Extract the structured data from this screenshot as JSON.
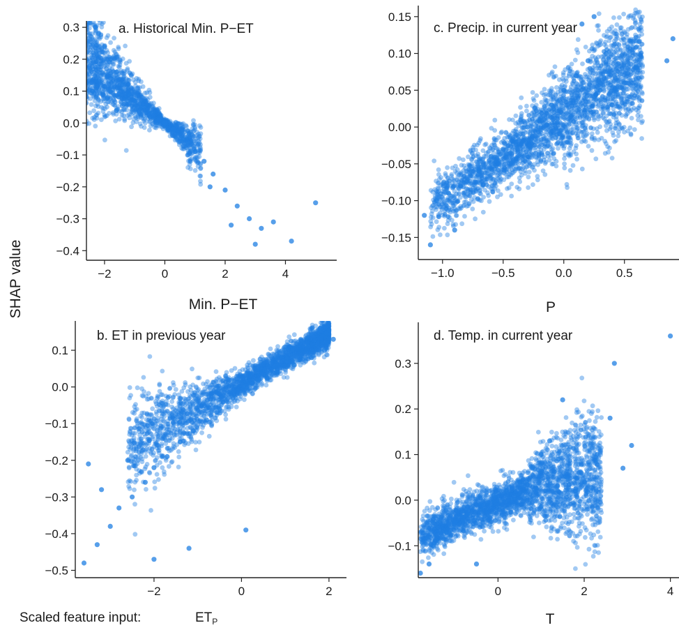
{
  "figure": {
    "shared_ylabel": "SHAP value",
    "footer_label": "Scaled feature input:",
    "footer_symbol": "ET",
    "footer_subscript": "P"
  },
  "colors": {
    "points": "#1f7fe3",
    "axis": "#222222"
  },
  "chart_data": [
    {
      "id": "a",
      "type": "scatter",
      "title": "a. Historical Min. P−ET",
      "xlabel": "Min. P−ET",
      "ylabel": "",
      "xlim": [
        -2.6,
        5.7
      ],
      "ylim": [
        -0.43,
        0.32
      ],
      "xticks": [
        -2,
        0,
        2,
        4
      ],
      "xtick_labels": [
        "−2",
        "0",
        "2",
        "4"
      ],
      "yticks": [
        0.3,
        0.2,
        0.1,
        0.0,
        -0.1,
        -0.2,
        -0.3,
        -0.4
      ],
      "ytick_labels": [
        "0.3",
        "0.2",
        "0.1",
        "0.0",
        "−0.1",
        "−0.2",
        "−0.3",
        "−0.4"
      ],
      "grid": false,
      "points": [
        [
          -2.3,
          0.3
        ],
        [
          -2.2,
          0.28
        ],
        [
          -2.0,
          0.24
        ],
        [
          -1.8,
          0.2
        ],
        [
          -1.6,
          0.16
        ],
        [
          -1.4,
          0.12
        ],
        [
          -1.2,
          0.09
        ],
        [
          -1.0,
          0.07
        ],
        [
          -0.8,
          0.05
        ],
        [
          -0.5,
          0.03
        ],
        [
          -0.2,
          0.01
        ],
        [
          0.0,
          0.0
        ],
        [
          0.3,
          -0.02
        ],
        [
          0.6,
          -0.05
        ],
        [
          1.0,
          -0.09
        ],
        [
          1.3,
          -0.12
        ],
        [
          1.6,
          -0.16
        ],
        [
          2.0,
          -0.21
        ],
        [
          2.4,
          -0.26
        ],
        [
          2.8,
          -0.3
        ],
        [
          3.2,
          -0.33
        ],
        [
          3.6,
          -0.31
        ],
        [
          4.2,
          -0.37
        ],
        [
          5.0,
          -0.25
        ],
        [
          -2.4,
          0.1
        ],
        [
          -1.9,
          0.08
        ],
        [
          -1.6,
          0.04
        ],
        [
          1.5,
          -0.2
        ],
        [
          2.2,
          -0.32
        ],
        [
          3.0,
          -0.38
        ]
      ]
    },
    {
      "id": "b",
      "type": "scatter",
      "title": "b. ET in previous year",
      "xlabel": "ET",
      "ylabel": "",
      "xlim": [
        -3.8,
        2.4
      ],
      "ylim": [
        -0.52,
        0.18
      ],
      "xticks": [
        -2,
        0,
        2
      ],
      "xtick_labels": [
        "−2",
        "0",
        "2"
      ],
      "yticks": [
        0.1,
        0.0,
        -0.1,
        -0.2,
        -0.3,
        -0.4,
        -0.5
      ],
      "ytick_labels": [
        "0.1",
        "0.0",
        "−0.1",
        "−0.2",
        "−0.3",
        "−0.4",
        "−0.5"
      ],
      "grid": false,
      "points": [
        [
          -3.6,
          -0.48
        ],
        [
          -3.3,
          -0.43
        ],
        [
          -3.0,
          -0.38
        ],
        [
          -2.8,
          -0.33
        ],
        [
          -2.5,
          -0.3
        ],
        [
          -2.2,
          -0.26
        ],
        [
          -2.0,
          -0.22
        ],
        [
          -1.7,
          -0.19
        ],
        [
          -1.4,
          -0.15
        ],
        [
          -1.1,
          -0.12
        ],
        [
          -0.8,
          -0.09
        ],
        [
          -0.5,
          -0.06
        ],
        [
          -0.2,
          -0.03
        ],
        [
          0.1,
          0.0
        ],
        [
          0.4,
          0.02
        ],
        [
          0.8,
          0.04
        ],
        [
          1.2,
          0.06
        ],
        [
          1.6,
          0.08
        ],
        [
          1.9,
          0.1
        ],
        [
          2.1,
          0.13
        ],
        [
          -3.2,
          -0.28
        ],
        [
          -2.6,
          -0.2
        ],
        [
          -1.2,
          -0.44
        ],
        [
          0.1,
          -0.39
        ],
        [
          -2.0,
          -0.47
        ],
        [
          -3.5,
          -0.21
        ],
        [
          1.8,
          0.16
        ]
      ]
    },
    {
      "id": "c",
      "type": "scatter",
      "title": "c. Precip. in current year",
      "xlabel": "P",
      "ylabel": "",
      "xlim": [
        -1.2,
        0.95
      ],
      "ylim": [
        -0.18,
        0.165
      ],
      "xticks": [
        -1.0,
        -0.5,
        0.0,
        0.5
      ],
      "xtick_labels": [
        "−1.0",
        "−0.5",
        "0.0",
        "0.5"
      ],
      "yticks": [
        0.15,
        0.1,
        0.05,
        0.0,
        -0.05,
        -0.1,
        -0.15
      ],
      "ytick_labels": [
        "0.15",
        "0.10",
        "0.05",
        "0.00",
        "−0.05",
        "−0.10",
        "−0.15"
      ],
      "grid": false,
      "points": [
        [
          -1.15,
          -0.12
        ],
        [
          -1.05,
          -0.1
        ],
        [
          -0.95,
          -0.09
        ],
        [
          -0.85,
          -0.08
        ],
        [
          -0.7,
          -0.06
        ],
        [
          -0.6,
          -0.04
        ],
        [
          -0.5,
          -0.03
        ],
        [
          -0.4,
          -0.02
        ],
        [
          -0.3,
          0.0
        ],
        [
          -0.2,
          0.01
        ],
        [
          -0.1,
          0.03
        ],
        [
          0.0,
          0.05
        ],
        [
          0.1,
          0.07
        ],
        [
          0.2,
          0.09
        ],
        [
          0.3,
          0.05
        ],
        [
          0.4,
          0.03
        ],
        [
          0.5,
          0.06
        ],
        [
          0.35,
          0.1
        ],
        [
          0.15,
          0.14
        ],
        [
          0.85,
          0.09
        ],
        [
          0.9,
          0.12
        ],
        [
          -0.9,
          -0.14
        ],
        [
          -1.1,
          -0.16
        ],
        [
          0.25,
          0.15
        ],
        [
          0.6,
          0.08
        ]
      ]
    },
    {
      "id": "d",
      "type": "scatter",
      "title": "d. Temp. in current year",
      "xlabel": "T",
      "ylabel": "",
      "xlim": [
        -1.85,
        4.2
      ],
      "ylim": [
        -0.17,
        0.39
      ],
      "xticks": [
        0,
        2,
        4
      ],
      "xtick_labels": [
        "0",
        "2",
        "4"
      ],
      "yticks": [
        0.3,
        0.2,
        0.1,
        0.0,
        -0.1
      ],
      "ytick_labels": [
        "0.3",
        "0.2",
        "0.1",
        "0.0",
        "−0.1"
      ],
      "grid": false,
      "points": [
        [
          -1.8,
          -0.16
        ],
        [
          -1.5,
          -0.1
        ],
        [
          -1.2,
          -0.07
        ],
        [
          -1.0,
          -0.05
        ],
        [
          -0.7,
          -0.03
        ],
        [
          -0.4,
          -0.01
        ],
        [
          -0.1,
          0.01
        ],
        [
          0.2,
          0.02
        ],
        [
          0.5,
          0.04
        ],
        [
          0.8,
          0.07
        ],
        [
          1.0,
          0.1
        ],
        [
          1.2,
          0.13
        ],
        [
          1.4,
          0.09
        ],
        [
          1.6,
          0.05
        ],
        [
          1.8,
          0.02
        ],
        [
          2.0,
          0.04
        ],
        [
          2.3,
          0.1
        ],
        [
          2.6,
          0.18
        ],
        [
          2.7,
          0.3
        ],
        [
          2.9,
          0.07
        ],
        [
          3.1,
          0.12
        ],
        [
          -1.6,
          -0.14
        ],
        [
          1.5,
          0.22
        ],
        [
          4.0,
          0.36
        ],
        [
          -0.5,
          -0.14
        ]
      ]
    }
  ]
}
